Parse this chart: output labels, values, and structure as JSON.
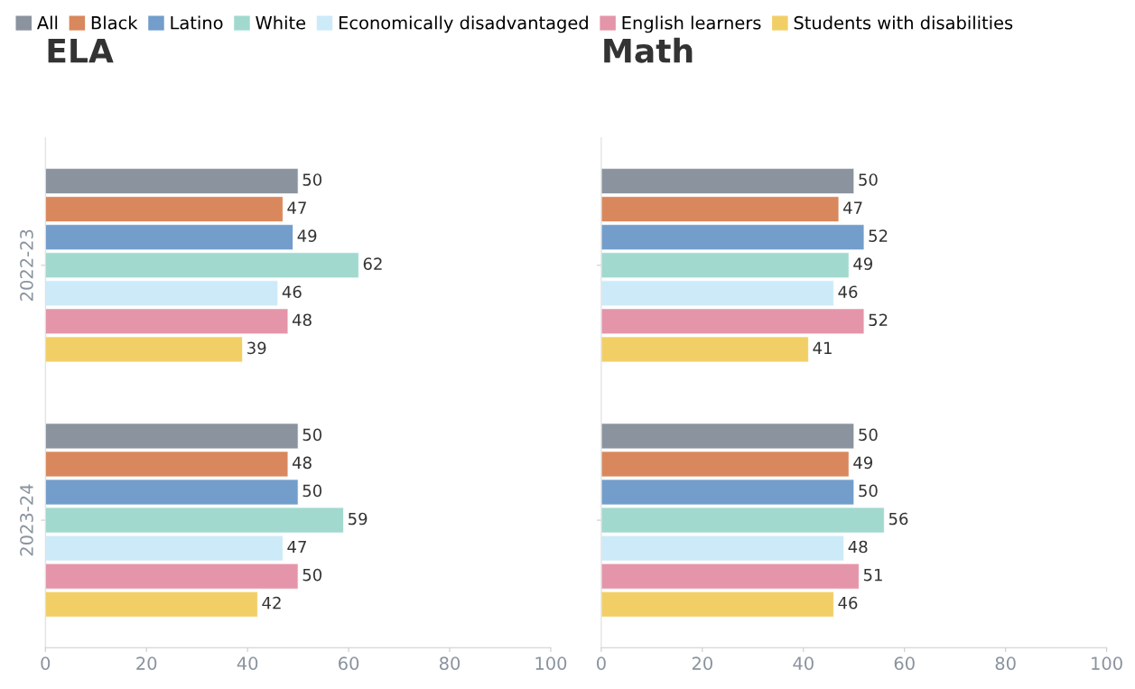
{
  "chart_data": [
    {
      "type": "bar",
      "orientation": "horizontal",
      "title": "ELA",
      "categories": [
        "2022-23",
        "2023-24"
      ],
      "xlim": [
        0,
        100
      ],
      "xticks": [
        0,
        20,
        40,
        60,
        80,
        100
      ],
      "grid": false,
      "legend": "top",
      "data_labels": true,
      "series": [
        {
          "name": "All",
          "color": "#8a939e",
          "values": [
            50,
            50
          ]
        },
        {
          "name": "Black",
          "color": "#d9875c",
          "values": [
            47,
            48
          ]
        },
        {
          "name": "Latino",
          "color": "#739dcb",
          "values": [
            49,
            50
          ]
        },
        {
          "name": "White",
          "color": "#a1d9cf",
          "values": [
            62,
            59
          ]
        },
        {
          "name": "Economically disadvantaged",
          "color": "#cdeaf8",
          "values": [
            46,
            47
          ]
        },
        {
          "name": "English learners",
          "color": "#e495a9",
          "values": [
            48,
            50
          ]
        },
        {
          "name": "Students with disabilities",
          "color": "#f2cf66",
          "values": [
            39,
            42
          ]
        }
      ]
    },
    {
      "type": "bar",
      "orientation": "horizontal",
      "title": "Math",
      "categories": [
        "2022-23",
        "2023-24"
      ],
      "xlim": [
        0,
        100
      ],
      "xticks": [
        0,
        20,
        40,
        60,
        80,
        100
      ],
      "grid": false,
      "legend": "top",
      "data_labels": true,
      "tick_labels": "x",
      "series": [
        {
          "name": "All",
          "color": "#8a939e",
          "values": [
            50,
            50
          ]
        },
        {
          "name": "Black",
          "color": "#d9875c",
          "values": [
            47,
            49
          ]
        },
        {
          "name": "Latino",
          "color": "#739dcb",
          "values": [
            52,
            50
          ]
        },
        {
          "name": "White",
          "color": "#a1d9cf",
          "values": [
            49,
            56
          ]
        },
        {
          "name": "Economically disadvantaged",
          "color": "#cdeaf8",
          "values": [
            46,
            48
          ]
        },
        {
          "name": "English learners",
          "color": "#e495a9",
          "values": [
            52,
            51
          ]
        },
        {
          "name": "Students with disabilities",
          "color": "#f2cf66",
          "values": [
            41,
            46
          ]
        }
      ]
    }
  ]
}
